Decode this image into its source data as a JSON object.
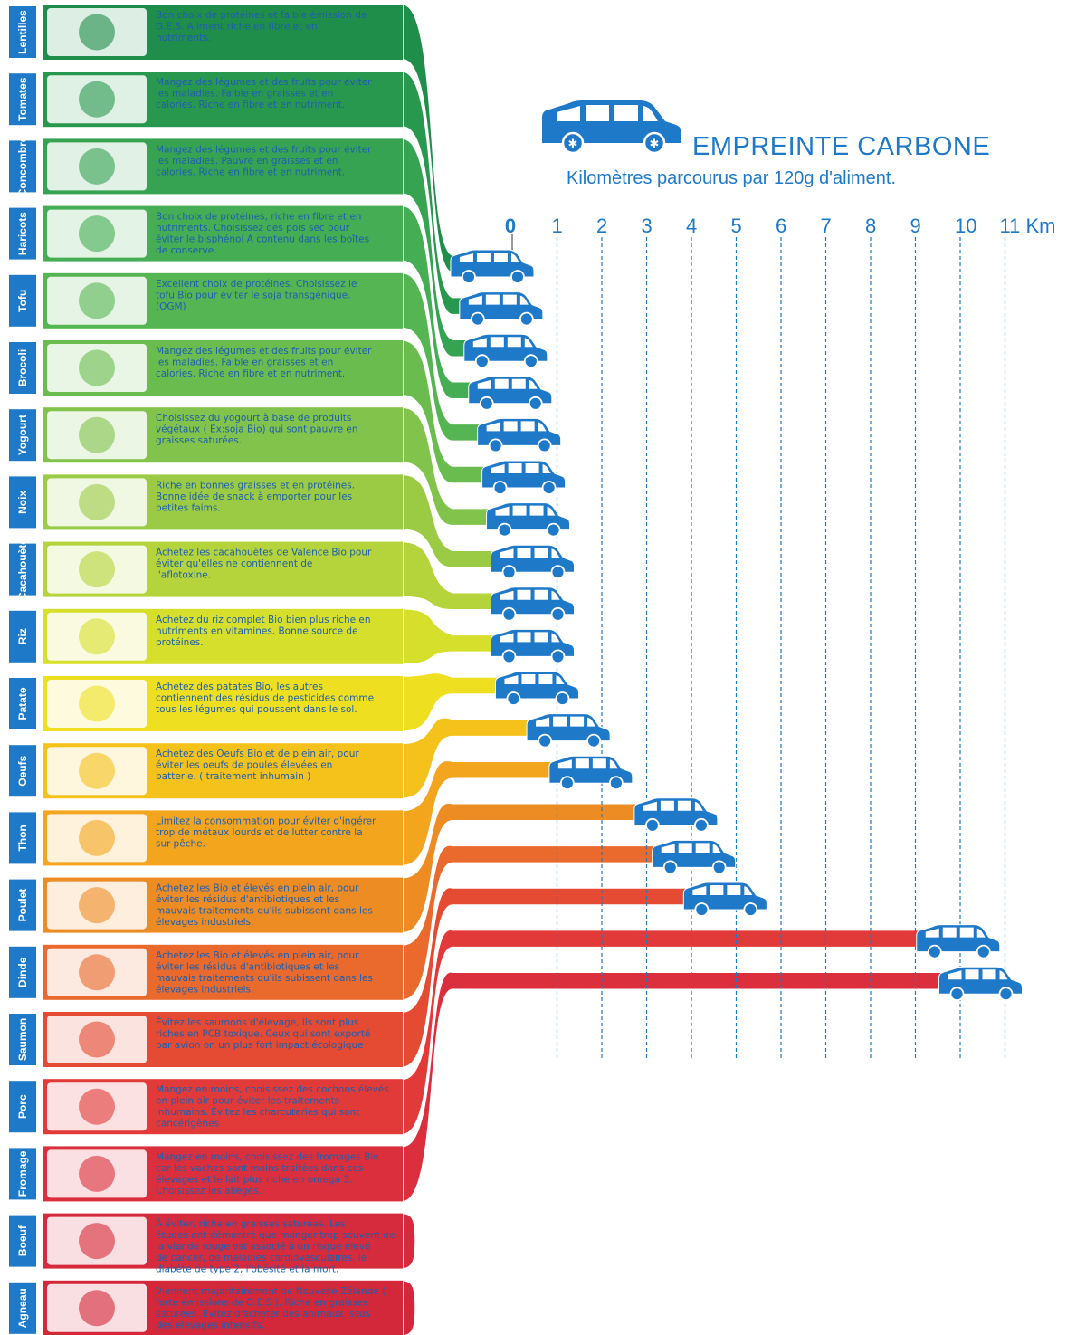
{
  "header": {
    "title": "EMPREINTE CARBONE",
    "subtitle": "Kilomètres parcourus par 120g d'aliment.",
    "icon": "car-icon"
  },
  "chart_data": {
    "type": "bar",
    "orientation": "horizontal",
    "title": "EMPREINTE CARBONE",
    "subtitle": "Kilomètres parcourus par 120g d'aliment.",
    "xlabel": "Km",
    "xlim": [
      0,
      11
    ],
    "x_ticks": [
      "0",
      "1",
      "2",
      "3",
      "4",
      "5",
      "6",
      "7",
      "8",
      "9",
      "10",
      "11 Km"
    ],
    "grid": true,
    "items": [
      {
        "label": "Lentilles",
        "value": 0.1,
        "color": "#1f8e4b",
        "icon": "lentils-icon",
        "description": "Bon choix de protéines et faible émission de G.E.S. Aliment riche en fibre et en nutriments."
      },
      {
        "label": "Tomates",
        "value": 0.3,
        "color": "#29984f",
        "icon": "tomato-icon",
        "description": "Mangez des légumes et des fruits pour éviter les maladies. Faible en graisses et en calories. Riche en fibre et en nutriment."
      },
      {
        "label": "Concombre",
        "value": 0.4,
        "color": "#36a352",
        "icon": "cucumber-icon",
        "description": "Mangez des légumes et des fruits pour éviter les maladies. Pauvre en graisses et en calories. Riche en fibre et en nutriment."
      },
      {
        "label": "Haricots",
        "value": 0.5,
        "color": "#45ad53",
        "icon": "beans-icon",
        "description": "Bon choix de protéines, riche en fibre et en nutriments. Choisissez des pois sec pour éviter le bisphénol A contenu dans les boîtes de conserve."
      },
      {
        "label": "Tofu",
        "value": 0.7,
        "color": "#56b553",
        "icon": "tofu-icon",
        "description": "Excellent choix de protéines. Choisissez le tofu Bio pour éviter le soja transgénique. (OGM)"
      },
      {
        "label": "Brocoli",
        "value": 0.8,
        "color": "#6abc4f",
        "icon": "broccoli-icon",
        "description": "Mangez des légumes et des fruits pour éviter les maladies. Faible en graisses et en calories. Riche en fibre et en nutriment."
      },
      {
        "label": "Yogourt",
        "value": 0.9,
        "color": "#82c34b",
        "icon": "yogurt-icon",
        "description": "Choisissez du yogourt  à base de produits végétaux ( Ex:soja Bio)  qui sont pauvre en graisses saturées."
      },
      {
        "label": "Noix",
        "value": 1.0,
        "color": "#9bca44",
        "icon": "walnut-icon",
        "description": "Riche en bonnes graisses et en protéines. Bonne idée de snack à emporter pour les petites faims."
      },
      {
        "label": "Cacahouète",
        "value": 1.0,
        "color": "#b5d33b",
        "icon": "peanut-icon",
        "description": "Achetez les cacahouètes de Valence Bio pour éviter qu'elles ne contiennent de l'aflotoxine."
      },
      {
        "label": "Riz",
        "value": 1.0,
        "color": "#d6df2c",
        "icon": "rice-icon",
        "description": "Achetez du riz complet Bio bien plus riche en nutriments en vitamines. Bonne source de protéines."
      },
      {
        "label": "Patate",
        "value": 1.1,
        "color": "#eedf20",
        "icon": "potato-icon",
        "description": "Achetez des patates Bio, les autres contiennent des résidus de pesticides comme tous les légumes qui poussent dans le sol."
      },
      {
        "label": "Oeufs",
        "value": 1.8,
        "color": "#f5c21c",
        "icon": "eggs-icon",
        "description": "Achetez des Oeufs Bio et de plein air, pour éviter les oeufs de poules élevées en batterie. ( traitement inhumain )"
      },
      {
        "label": "Thon",
        "value": 2.3,
        "color": "#f3a51e",
        "icon": "tuna-icon",
        "description": "Limitez la consommation pour éviter d'ingérer trop de métaux lourds et de lutter contre la sur-pêche."
      },
      {
        "label": "Poulet",
        "value": 4.2,
        "color": "#ee8c24",
        "icon": "chicken-icon",
        "description": "Achetez les Bio et élevés en plein air, pour éviter les résidus d'antibiotiques et les mauvais traitements qu'ils subissent dans les élevages industriels."
      },
      {
        "label": "Dinde",
        "value": 4.6,
        "color": "#e96a2c",
        "icon": "turkey-icon",
        "description": "Achetez les Bio et élevés en plein air, pour éviter les résidus d'antibiotiques et les mauvais traitements qu'ils subissent dans les élevages industriels."
      },
      {
        "label": "Saumon",
        "value": 5.3,
        "color": "#e54a32",
        "icon": "salmon-icon",
        "description": "Évitez les saumons d'élevage, ils sont plus riches en PCB toxique. Ceux qui sont exporté par avion on un plus fort impact écologique"
      },
      {
        "label": "Porc",
        "value": 10.5,
        "color": "#e13a39",
        "icon": "pig-icon",
        "description": "Mangez en moins, choisissez des cochons élevés en plein air pour éviter les traitements inhumains. Évitez les charcuteries qui sont cancérigènes"
      },
      {
        "label": "Fromage",
        "value": 11.0,
        "color": "#db2f3d",
        "icon": "cheese-icon",
        "description": "Mangez en moins, choisissez des fromages Bio car les vaches sont moins traitées dans ces élevages et le lait plus riche en omega 3. Choisissez les allégés."
      },
      {
        "label": "Boeuf",
        "value": null,
        "color": "#d62b3c",
        "icon": "cow-icon",
        "description": "À éviter, riche en graisses saturées. Les études ont démontré que manger trop souvent de la viande rouge est associé à un risque élevé de cancer, de maladies cardiovasculaires, le diabète de type 2, l'obésité et la mort."
      },
      {
        "label": "Agneau",
        "value": null,
        "color": "#d3283a",
        "icon": "lamb-icon",
        "description": "Viennent majoritairement de Nouvelle Zélande ( forte émissions de G.E.S ). Riche en graisses saturées. Évitez d'acheter des animaux issus des élevages intensifs."
      }
    ]
  }
}
